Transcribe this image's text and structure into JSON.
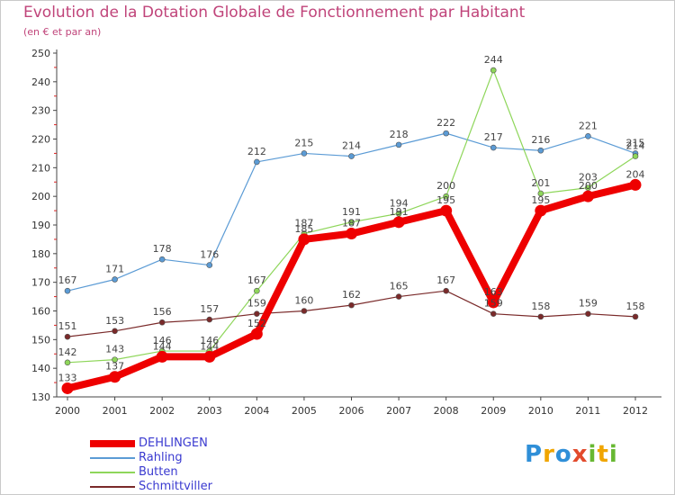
{
  "title": "Evolution de la Dotation Globale de Fonctionnement par Habitant",
  "subtitle": "(en € et par an)",
  "logo": {
    "letters": [
      "P",
      "r",
      "o",
      "x",
      "i",
      "t",
      "i"
    ],
    "colors": [
      "#2f8fd8",
      "#f0a500",
      "#2f8fd8",
      "#e24a2c",
      "#67b832",
      "#f0a500",
      "#67b832"
    ]
  },
  "chart_data": {
    "type": "line",
    "x": [
      "2000",
      "2001",
      "2002",
      "2003",
      "2004",
      "2005",
      "2006",
      "2007",
      "2008",
      "2009",
      "2010",
      "2011",
      "2012"
    ],
    "ylim": [
      130,
      250
    ],
    "yticks": [
      130,
      140,
      150,
      160,
      170,
      180,
      190,
      200,
      210,
      220,
      230,
      240,
      250
    ],
    "grid": false,
    "legend_position": "bottom-left",
    "series": [
      {
        "name": "Rahling",
        "color": "#5b9bd5",
        "width": 1.2,
        "values": [
          167,
          171,
          178,
          176,
          212,
          215,
          214,
          218,
          222,
          217,
          216,
          221,
          215
        ]
      },
      {
        "name": "Butten",
        "color": "#8ed65a",
        "width": 1.2,
        "values": [
          142,
          143,
          146,
          146,
          167,
          187,
          191,
          194,
          200,
          244,
          201,
          203,
          214
        ]
      },
      {
        "name": "Schmittviller",
        "color": "#7a2a2a",
        "width": 1.2,
        "values": [
          151,
          153,
          156,
          157,
          159,
          160,
          162,
          165,
          167,
          159,
          158,
          159,
          158
        ]
      },
      {
        "name": "DEHLINGEN",
        "color": "#ee0000",
        "width": 8,
        "values": [
          133,
          137,
          144,
          144,
          152,
          185,
          187,
          191,
          195,
          163,
          195,
          200,
          204
        ]
      }
    ],
    "legend_order": [
      "DEHLINGEN",
      "Rahling",
      "Butten",
      "Schmittviller"
    ]
  }
}
